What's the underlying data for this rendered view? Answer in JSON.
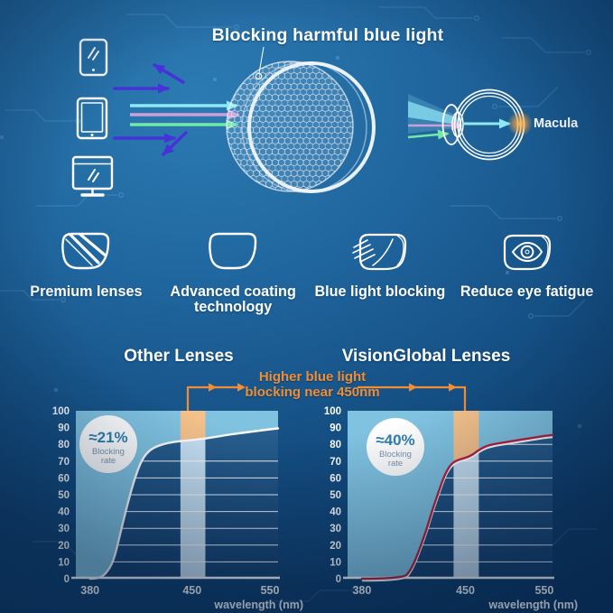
{
  "hero": {
    "title": "Blocking harmful blue light",
    "macula_label": "Macula",
    "device_icons": [
      "smartphone",
      "tablet",
      "monitor"
    ],
    "ray_colors": {
      "reflected_blue": "#4632d8",
      "cyan": "#8fe8f4",
      "pink": "#cf9ed8",
      "green": "#72e9a6"
    }
  },
  "features": [
    {
      "icon": "premium-lens-icon",
      "label": "Premium lenses"
    },
    {
      "icon": "coating-lens-icon",
      "label": "Advanced coating technology"
    },
    {
      "icon": "blue-light-blocking-lens-icon",
      "label": "Blue light blocking"
    },
    {
      "icon": "eye-fatigue-lens-icon",
      "label": "Reduce eye fatigue"
    }
  ],
  "comparison": {
    "annotation": {
      "line1": "Higher blue light",
      "line2": "blocking near 450nm",
      "color": "#ef8e35"
    }
  },
  "chart_data": [
    {
      "type": "area",
      "title": "Other Lenses",
      "badge": {
        "value": "≈21%",
        "label_line1": "Blocking",
        "label_line2": "rate"
      },
      "xlabel": "wavelength (nm)",
      "x_ticks": [
        380,
        450,
        550
      ],
      "x_tick_fracs": [
        [
          380,
          0.07
        ],
        [
          450,
          0.575
        ],
        [
          550,
          0.96
        ]
      ],
      "y_ticks": [
        100,
        90,
        80,
        70,
        60,
        50,
        40,
        30,
        20,
        10,
        0
      ],
      "ylim": [
        0,
        100
      ],
      "grid": true,
      "gridlines": [
        10,
        20,
        30,
        40,
        50,
        60,
        70
      ],
      "highlight_band_nm": [
        442,
        467
      ],
      "series": [
        {
          "name": "blocking rate curve",
          "points": [
            [
              380,
              0
            ],
            [
              386,
              0
            ],
            [
              391,
              3
            ],
            [
              396,
              10
            ],
            [
              400,
              24
            ],
            [
              405,
              42
            ],
            [
              410,
              58
            ],
            [
              415,
              70
            ],
            [
              420,
              76
            ],
            [
              426,
              79
            ],
            [
              434,
              81
            ],
            [
              442,
              82
            ],
            [
              450,
              82.5
            ],
            [
              467,
              83.5
            ],
            [
              500,
              86
            ],
            [
              550,
              89
            ]
          ]
        }
      ],
      "curve_color": "#ffffff",
      "curve_underlay": ""
    },
    {
      "type": "area",
      "title": "VisionGlobal Lenses",
      "badge": {
        "value": "≈40%",
        "label_line1": "Blocking",
        "label_line2": "rate"
      },
      "xlabel": "wavelength (nm)",
      "x_ticks": [
        380,
        450,
        550
      ],
      "x_tick_fracs": [
        [
          380,
          0.07
        ],
        [
          450,
          0.575
        ],
        [
          550,
          0.96
        ]
      ],
      "y_ticks": [
        100,
        90,
        80,
        70,
        60,
        50,
        40,
        30,
        20,
        10,
        0
      ],
      "ylim": [
        0,
        100
      ],
      "grid": true,
      "gridlines": [
        10,
        20,
        30,
        40,
        50,
        60,
        70,
        80
      ],
      "highlight_band_nm": [
        442,
        467
      ],
      "series": [
        {
          "name": "blocking rate curve",
          "points": [
            [
              380,
              0
            ],
            [
              408,
              0
            ],
            [
              413,
              5
            ],
            [
              418,
              15
            ],
            [
              424,
              30
            ],
            [
              428,
              42
            ],
            [
              432,
              52
            ],
            [
              436,
              62
            ],
            [
              440,
              68
            ],
            [
              444,
              70.5
            ],
            [
              450,
              72
            ],
            [
              458,
              73.5
            ],
            [
              465,
              76
            ],
            [
              472,
              78
            ],
            [
              480,
              79.5
            ],
            [
              490,
              80.5
            ],
            [
              510,
              82
            ],
            [
              530,
              83.5
            ],
            [
              550,
              85
            ]
          ]
        }
      ],
      "curve_color": "#b3213f",
      "curve_underlay": "#ffffff"
    }
  ],
  "colors": {
    "plot_dark_top": "#2a6394",
    "plot_dark_bottom": "#143f6d",
    "area_fill": "#80c3e1",
    "band_pale": "#c7e0f2",
    "band_orange": "#f5c18a",
    "accent_orange": "#ef8e35",
    "badge_value_text": "#2f7fb1",
    "badge_label_text": "#7d95ad",
    "axis_text": "#ffffff"
  }
}
